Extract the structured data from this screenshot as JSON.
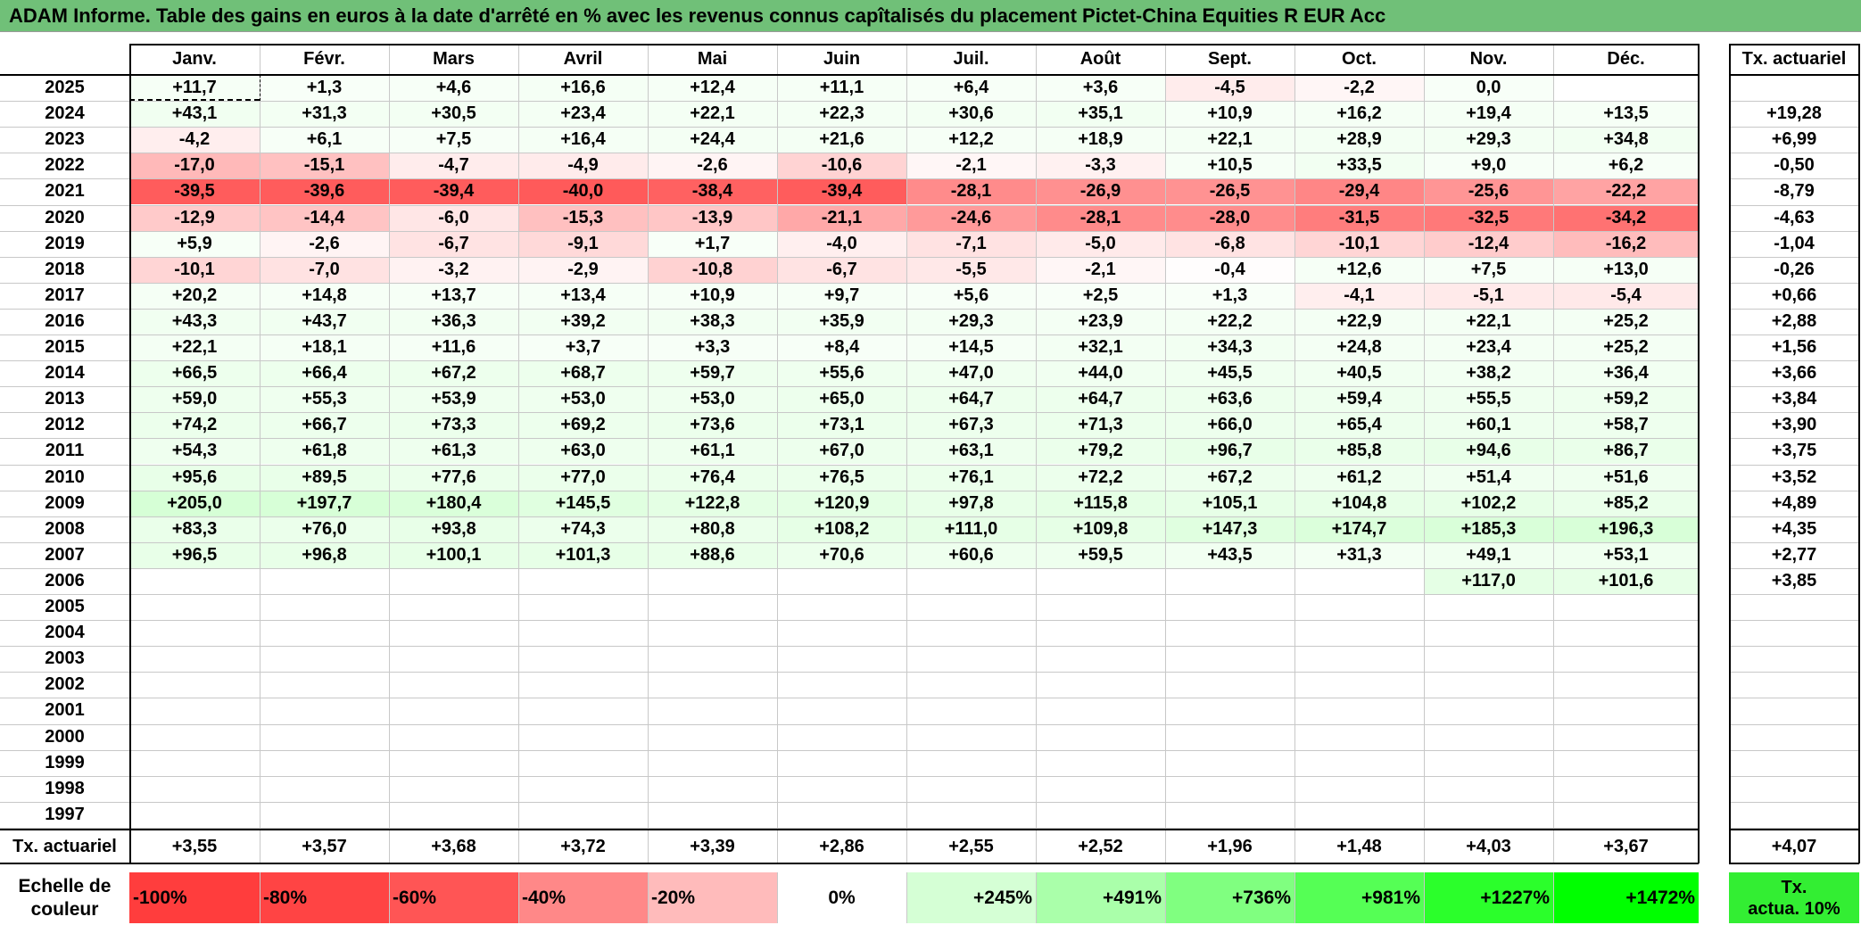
{
  "title": "ADAM Informe. Table des gains en euros à la date d'arrêté en % avec les revenus connus capîtalisés du placement Pictet-China Equities R EUR Acc",
  "months": [
    "Janv.",
    "Févr.",
    "Mars",
    "Avril",
    "Mai",
    "Juin",
    "Juil.",
    "Août",
    "Sept.",
    "Oct.",
    "Nov.",
    "Déc."
  ],
  "tx_header": "Tx. actuariel",
  "rows": [
    {
      "year": "2025",
      "values": [
        "+11,7",
        "+1,3",
        "+4,6",
        "+16,6",
        "+12,4",
        "+11,1",
        "+6,4",
        "+3,6",
        "-4,5",
        "-2,2",
        "0,0",
        ""
      ],
      "tx": ""
    },
    {
      "year": "2024",
      "values": [
        "+43,1",
        "+31,3",
        "+30,5",
        "+23,4",
        "+22,1",
        "+22,3",
        "+30,6",
        "+35,1",
        "+10,9",
        "+16,2",
        "+19,4",
        "+13,5"
      ],
      "tx": "+19,28"
    },
    {
      "year": "2023",
      "values": [
        "-4,2",
        "+6,1",
        "+7,5",
        "+16,4",
        "+24,4",
        "+21,6",
        "+12,2",
        "+18,9",
        "+22,1",
        "+28,9",
        "+29,3",
        "+34,8"
      ],
      "tx": "+6,99"
    },
    {
      "year": "2022",
      "values": [
        "-17,0",
        "-15,1",
        "-4,7",
        "-4,9",
        "-2,6",
        "-10,6",
        "-2,1",
        "-3,3",
        "+10,5",
        "+33,5",
        "+9,0",
        "+6,2"
      ],
      "tx": "-0,50"
    },
    {
      "year": "2021",
      "values": [
        "-39,5",
        "-39,6",
        "-39,4",
        "-40,0",
        "-38,4",
        "-39,4",
        "-28,1",
        "-26,9",
        "-26,5",
        "-29,4",
        "-25,6",
        "-22,2"
      ],
      "tx": "-8,79"
    },
    {
      "year": "2020",
      "values": [
        "-12,9",
        "-14,4",
        "-6,0",
        "-15,3",
        "-13,9",
        "-21,1",
        "-24,6",
        "-28,1",
        "-28,0",
        "-31,5",
        "-32,5",
        "-34,2"
      ],
      "tx": "-4,63"
    },
    {
      "year": "2019",
      "values": [
        "+5,9",
        "-2,6",
        "-6,7",
        "-9,1",
        "+1,7",
        "-4,0",
        "-7,1",
        "-5,0",
        "-6,8",
        "-10,1",
        "-12,4",
        "-16,2"
      ],
      "tx": "-1,04"
    },
    {
      "year": "2018",
      "values": [
        "-10,1",
        "-7,0",
        "-3,2",
        "-2,9",
        "-10,8",
        "-6,7",
        "-5,5",
        "-2,1",
        "-0,4",
        "+12,6",
        "+7,5",
        "+13,0"
      ],
      "tx": "-0,26"
    },
    {
      "year": "2017",
      "values": [
        "+20,2",
        "+14,8",
        "+13,7",
        "+13,4",
        "+10,9",
        "+9,7",
        "+5,6",
        "+2,5",
        "+1,3",
        "-4,1",
        "-5,1",
        "-5,4"
      ],
      "tx": "+0,66"
    },
    {
      "year": "2016",
      "values": [
        "+43,3",
        "+43,7",
        "+36,3",
        "+39,2",
        "+38,3",
        "+35,9",
        "+29,3",
        "+23,9",
        "+22,2",
        "+22,9",
        "+22,1",
        "+25,2"
      ],
      "tx": "+2,88"
    },
    {
      "year": "2015",
      "values": [
        "+22,1",
        "+18,1",
        "+11,6",
        "+3,7",
        "+3,3",
        "+8,4",
        "+14,5",
        "+32,1",
        "+34,3",
        "+24,8",
        "+23,4",
        "+25,2"
      ],
      "tx": "+1,56"
    },
    {
      "year": "2014",
      "values": [
        "+66,5",
        "+66,4",
        "+67,2",
        "+68,7",
        "+59,7",
        "+55,6",
        "+47,0",
        "+44,0",
        "+45,5",
        "+40,5",
        "+38,2",
        "+36,4"
      ],
      "tx": "+3,66"
    },
    {
      "year": "2013",
      "values": [
        "+59,0",
        "+55,3",
        "+53,9",
        "+53,0",
        "+53,0",
        "+65,0",
        "+64,7",
        "+64,7",
        "+63,6",
        "+59,4",
        "+55,5",
        "+59,2"
      ],
      "tx": "+3,84"
    },
    {
      "year": "2012",
      "values": [
        "+74,2",
        "+66,7",
        "+73,3",
        "+69,2",
        "+73,6",
        "+73,1",
        "+67,3",
        "+71,3",
        "+66,0",
        "+65,4",
        "+60,1",
        "+58,7"
      ],
      "tx": "+3,90"
    },
    {
      "year": "2011",
      "values": [
        "+54,3",
        "+61,8",
        "+61,3",
        "+63,0",
        "+61,1",
        "+67,0",
        "+63,1",
        "+79,2",
        "+96,7",
        "+85,8",
        "+94,6",
        "+86,7"
      ],
      "tx": "+3,75"
    },
    {
      "year": "2010",
      "values": [
        "+95,6",
        "+89,5",
        "+77,6",
        "+77,0",
        "+76,4",
        "+76,5",
        "+76,1",
        "+72,2",
        "+67,2",
        "+61,2",
        "+51,4",
        "+51,6"
      ],
      "tx": "+3,52"
    },
    {
      "year": "2009",
      "values": [
        "+205,0",
        "+197,7",
        "+180,4",
        "+145,5",
        "+122,8",
        "+120,9",
        "+97,8",
        "+115,8",
        "+105,1",
        "+104,8",
        "+102,2",
        "+85,2"
      ],
      "tx": "+4,89"
    },
    {
      "year": "2008",
      "values": [
        "+83,3",
        "+76,0",
        "+93,8",
        "+74,3",
        "+80,8",
        "+108,2",
        "+111,0",
        "+109,8",
        "+147,3",
        "+174,7",
        "+185,3",
        "+196,3"
      ],
      "tx": "+4,35"
    },
    {
      "year": "2007",
      "values": [
        "+96,5",
        "+96,8",
        "+100,1",
        "+101,3",
        "+88,6",
        "+70,6",
        "+60,6",
        "+59,5",
        "+43,5",
        "+31,3",
        "+49,1",
        "+53,1"
      ],
      "tx": "+2,77"
    },
    {
      "year": "2006",
      "values": [
        "",
        "",
        "",
        "",
        "",
        "",
        "",
        "",
        "",
        "",
        "+117,0",
        "+101,6"
      ],
      "tx": "+3,85"
    },
    {
      "year": "2005",
      "values": [
        "",
        "",
        "",
        "",
        "",
        "",
        "",
        "",
        "",
        "",
        "",
        ""
      ],
      "tx": ""
    },
    {
      "year": "2004",
      "values": [
        "",
        "",
        "",
        "",
        "",
        "",
        "",
        "",
        "",
        "",
        "",
        ""
      ],
      "tx": ""
    },
    {
      "year": "2003",
      "values": [
        "",
        "",
        "",
        "",
        "",
        "",
        "",
        "",
        "",
        "",
        "",
        ""
      ],
      "tx": ""
    },
    {
      "year": "2002",
      "values": [
        "",
        "",
        "",
        "",
        "",
        "",
        "",
        "",
        "",
        "",
        "",
        ""
      ],
      "tx": ""
    },
    {
      "year": "2001",
      "values": [
        "",
        "",
        "",
        "",
        "",
        "",
        "",
        "",
        "",
        "",
        "",
        ""
      ],
      "tx": ""
    },
    {
      "year": "2000",
      "values": [
        "",
        "",
        "",
        "",
        "",
        "",
        "",
        "",
        "",
        "",
        "",
        ""
      ],
      "tx": ""
    },
    {
      "year": "1999",
      "values": [
        "",
        "",
        "",
        "",
        "",
        "",
        "",
        "",
        "",
        "",
        "",
        ""
      ],
      "tx": ""
    },
    {
      "year": "1998",
      "values": [
        "",
        "",
        "",
        "",
        "",
        "",
        "",
        "",
        "",
        "",
        "",
        ""
      ],
      "tx": ""
    },
    {
      "year": "1997",
      "values": [
        "",
        "",
        "",
        "",
        "",
        "",
        "",
        "",
        "",
        "",
        "",
        ""
      ],
      "tx": ""
    }
  ],
  "summary": {
    "label": "Tx. actuariel",
    "values": [
      "+3,55",
      "+3,57",
      "+3,68",
      "+3,72",
      "+3,39",
      "+2,86",
      "+2,55",
      "+2,52",
      "+1,96",
      "+1,48",
      "+4,03",
      "+3,67"
    ],
    "tx": "+4,07"
  },
  "legend": {
    "label_line1": "Echelle de",
    "label_line2": "couleur",
    "items": [
      {
        "text": "-100%",
        "color": "#ff3d3d",
        "align": "left"
      },
      {
        "text": "-80%",
        "color": "#ff4444",
        "align": "left"
      },
      {
        "text": "-60%",
        "color": "#ff5555",
        "align": "left"
      },
      {
        "text": "-40%",
        "color": "#ff8888",
        "align": "left"
      },
      {
        "text": "-20%",
        "color": "#ffbbbb",
        "align": "left"
      },
      {
        "text": "0%",
        "color": "#ffffff",
        "align": "center"
      },
      {
        "text": "+245%",
        "color": "#d5ffd5",
        "align": "right"
      },
      {
        "text": "+491%",
        "color": "#aaffaa",
        "align": "right"
      },
      {
        "text": "+736%",
        "color": "#80ff80",
        "align": "right"
      },
      {
        "text": "+981%",
        "color": "#55ff55",
        "align": "right"
      },
      {
        "text": "+1227%",
        "color": "#2bff2b",
        "align": "right"
      },
      {
        "text": "+1472%",
        "color": "#00ff00",
        "align": "right"
      }
    ],
    "tx_line1": "Tx.",
    "tx_line2": "actua. 10%",
    "tx_color": "#33ee33"
  },
  "colors": {
    "title_bg": "#70c078",
    "neg_full": "#ff5a5a",
    "pos_full": "#00ff00"
  }
}
